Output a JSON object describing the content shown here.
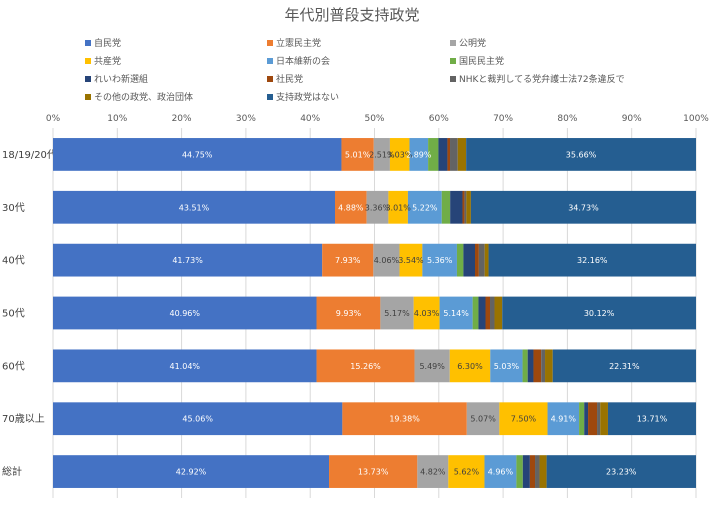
{
  "chart_data": {
    "type": "bar",
    "orientation": "horizontal",
    "stacked": "percent",
    "title": "年代別普段支持政党",
    "categories": [
      "18/19/20代",
      "30代",
      "40代",
      "50代",
      "60代",
      "70歳以上",
      "総計"
    ],
    "xlim": [
      0,
      100
    ],
    "x_ticks": [
      "0%",
      "10%",
      "20%",
      "30%",
      "40%",
      "50%",
      "60%",
      "70%",
      "80%",
      "90%",
      "100%"
    ],
    "grid": true,
    "legend_position": "top",
    "series": [
      {
        "name": "自民党",
        "color": "#4472C4",
        "values": [
          44.75,
          43.51,
          41.73,
          40.96,
          41.04,
          45.06,
          42.92
        ],
        "labels": [
          "44.75%",
          "43.51%",
          "41.73%",
          "40.96%",
          "41.04%",
          "45.06%",
          "42.92%"
        ]
      },
      {
        "name": "立憲民主党",
        "color": "#ED7D31",
        "values": [
          5.01,
          4.88,
          7.93,
          9.93,
          15.26,
          19.38,
          13.73
        ],
        "labels": [
          "5.01%",
          "4.88%",
          "7.93%",
          "9.93%",
          "15.26%",
          "19.38%",
          "13.73%"
        ]
      },
      {
        "name": "公明党",
        "color": "#A5A5A5",
        "values": [
          2.51,
          3.36,
          4.06,
          5.17,
          5.49,
          5.07,
          4.82
        ],
        "labels": [
          "2.51%",
          "3.36%",
          "4.06%",
          "5.17%",
          "5.49%",
          "5.07%",
          "4.82%"
        ]
      },
      {
        "name": "共産党",
        "color": "#FFC000",
        "values": [
          3.03,
          3.01,
          3.54,
          4.03,
          6.3,
          7.5,
          5.62
        ],
        "labels": [
          "3.03%",
          "3.01%",
          "3.54%",
          "4.03%",
          "6.30%",
          "7.50%",
          "5.62%"
        ]
      },
      {
        "name": "日本維新の会",
        "color": "#5B9BD5",
        "values": [
          2.89,
          5.22,
          5.36,
          5.14,
          5.03,
          4.91,
          4.96
        ],
        "labels": [
          "2.89%",
          "5.22%",
          "5.36%",
          "5.14%",
          "5.03%",
          "4.91%",
          "4.96%"
        ]
      },
      {
        "name": "国民民主党",
        "color": "#70AD47",
        "values": [
          1.6,
          1.3,
          1.0,
          0.9,
          0.8,
          0.8,
          1.0
        ],
        "labels": [
          "",
          "",
          "",
          "",
          "",
          "",
          ""
        ]
      },
      {
        "name": "れいわ新選組",
        "color": "#264478",
        "values": [
          1.4,
          1.9,
          1.8,
          1.1,
          0.9,
          0.6,
          1.1
        ],
        "labels": [
          "",
          "",
          "",
          "",
          "",
          "",
          ""
        ]
      },
      {
        "name": "社民党",
        "color": "#9E480E",
        "values": [
          0.4,
          0.3,
          0.6,
          0.7,
          1.2,
          1.4,
          0.8
        ],
        "labels": [
          "",
          "",
          "",
          "",
          "",
          "",
          ""
        ]
      },
      {
        "name": "NHKと裁判してる党弁護士法72条違反で",
        "color": "#636363",
        "values": [
          1.2,
          0.3,
          0.9,
          0.7,
          0.6,
          0.5,
          0.7
        ],
        "labels": [
          "",
          "",
          "",
          "",
          "",
          "",
          ""
        ]
      },
      {
        "name": "その他の政党、政治団体",
        "color": "#997300",
        "values": [
          1.3,
          0.7,
          0.6,
          1.2,
          1.2,
          1.2,
          1.1
        ],
        "labels": [
          "",
          "",
          "",
          "",
          "",
          "",
          ""
        ]
      },
      {
        "name": "支持政党はない",
        "color": "#255E91",
        "values": [
          35.66,
          34.73,
          32.16,
          30.12,
          22.31,
          13.71,
          23.23
        ],
        "labels": [
          "35.66%",
          "34.73%",
          "32.16%",
          "30.12%",
          "22.31%",
          "13.71%",
          "23.23%"
        ]
      }
    ]
  }
}
